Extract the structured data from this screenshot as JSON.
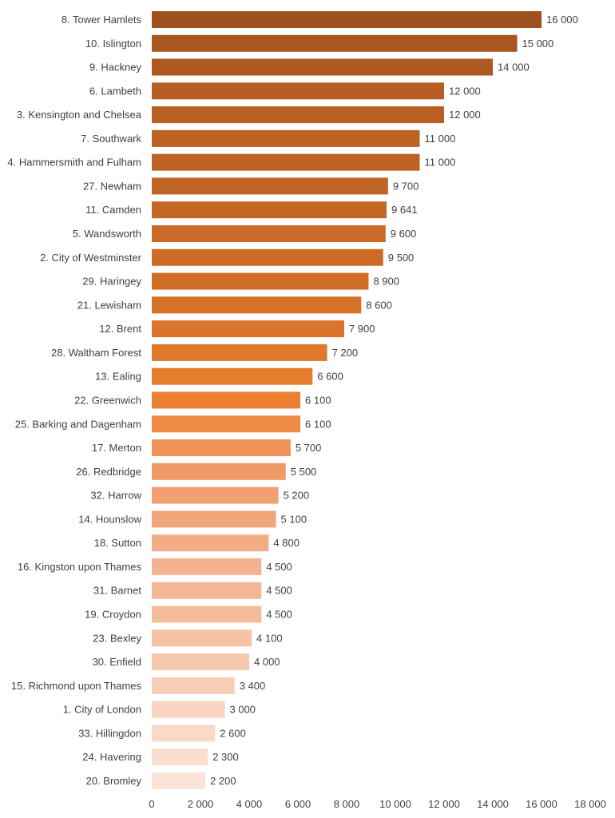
{
  "chart_data": {
    "type": "bar",
    "orientation": "horizontal",
    "categories": [
      "8. Tower Hamlets",
      "10. Islington",
      "9. Hackney",
      "6. Lambeth",
      "3. Kensington and Chelsea",
      "7. Southwark",
      "4. Hammersmith and Fulham",
      "27. Newham",
      "11. Camden",
      "5. Wandsworth",
      "2. City of Westminster",
      "29. Haringey",
      "21. Lewisham",
      "12. Brent",
      "28. Waltham Forest",
      "13. Ealing",
      "22. Greenwich",
      "25. Barking and Dagenham",
      "17. Merton",
      "26. Redbridge",
      "32. Harrow",
      "14. Hounslow",
      "18. Sutton",
      "16. Kingston upon Thames",
      "31. Barnet",
      "19. Croydon",
      "23. Bexley",
      "30. Enfield",
      "15. Richmond upon Thames",
      "1. City of London",
      "33. Hillingdon",
      "24. Havering",
      "20. Bromley"
    ],
    "values": [
      16000,
      15000,
      14000,
      12000,
      12000,
      11000,
      11000,
      9700,
      9641,
      9600,
      9500,
      8900,
      8600,
      7900,
      7200,
      6600,
      6100,
      6100,
      5700,
      5500,
      5200,
      5100,
      4800,
      4500,
      4500,
      4500,
      4100,
      4000,
      3400,
      3000,
      2600,
      2300,
      2200
    ],
    "value_labels": [
      "16 000",
      "15 000",
      "14 000",
      "12 000",
      "12 000",
      "11 000",
      "11 000",
      "9 700",
      "9 641",
      "9 600",
      "9 500",
      "8 900",
      "8 600",
      "7 900",
      "7 200",
      "6 600",
      "6 100",
      "6 100",
      "5 700",
      "5 500",
      "5 200",
      "5 100",
      "4 800",
      "4 500",
      "4 500",
      "4 500",
      "4 100",
      "4 000",
      "3 400",
      "3 000",
      "2 600",
      "2 300",
      "2 200"
    ],
    "colors": [
      "#a0521e",
      "#a9561f",
      "#ae5920",
      "#b75f22",
      "#b86022",
      "#bc6223",
      "#bc6223",
      "#c16524",
      "#c46725",
      "#c96a26",
      "#cd6c27",
      "#d06e28",
      "#d57129",
      "#da742a",
      "#e0782c",
      "#e67c2e",
      "#ec8032",
      "#ee8a44",
      "#ef9257",
      "#f09a66",
      "#f1a072",
      "#f2a67c",
      "#f2ad87",
      "#f3b391",
      "#f3b795",
      "#f4bb9a",
      "#f5c2a6",
      "#f6c9af",
      "#f7cfb9",
      "#f8d4c1",
      "#f9d9c8",
      "#fadfd1",
      "#fae3d7"
    ],
    "xlim": [
      0,
      18000
    ],
    "xticks": [
      0,
      2000,
      4000,
      6000,
      8000,
      10000,
      12000,
      14000,
      16000,
      18000
    ],
    "xtick_labels": [
      "0",
      "2 000",
      "4 000",
      "6 000",
      "8 000",
      "10 000",
      "12 000",
      "14 000",
      "16 000",
      "18 000"
    ],
    "grid": false,
    "title": "",
    "xlabel": "",
    "ylabel": ""
  }
}
